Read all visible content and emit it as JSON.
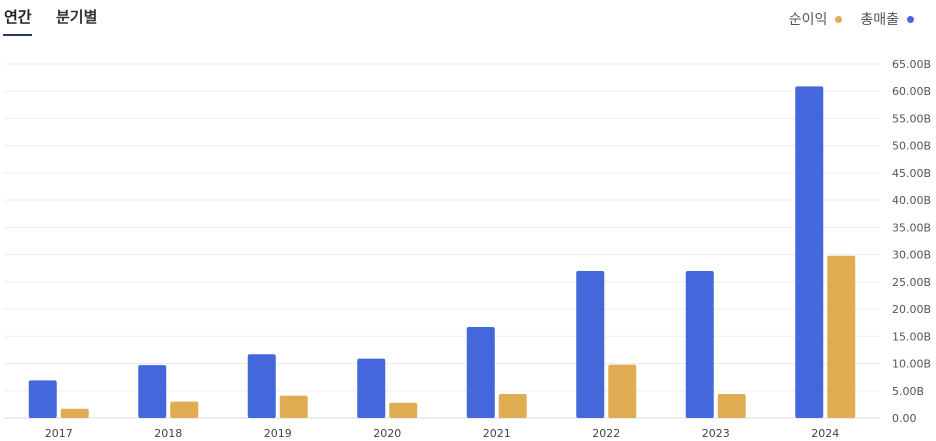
{
  "tabs": {
    "annual": "연간",
    "quarterly": "분기별"
  },
  "legend": [
    {
      "label": "순이익",
      "color": "#e0ac52"
    },
    {
      "label": "총매출",
      "color": "#4467dc"
    }
  ],
  "chart_data": {
    "type": "bar",
    "categories": [
      "2017",
      "2018",
      "2019",
      "2020",
      "2021",
      "2022",
      "2023",
      "2024"
    ],
    "series": [
      {
        "name": "총매출",
        "color": "#4467dc",
        "values": [
          6.9,
          9.7,
          11.7,
          10.9,
          16.7,
          27.0,
          27.0,
          60.9
        ]
      },
      {
        "name": "순이익",
        "color": "#e0ac52",
        "values": [
          1.7,
          3.0,
          4.1,
          2.8,
          4.4,
          9.8,
          4.4,
          29.8
        ]
      }
    ],
    "ylim": [
      0,
      65
    ],
    "yticks": [
      "0.00",
      "5.00B",
      "10.00B",
      "15.00B",
      "20.00B",
      "25.00B",
      "30.00B",
      "35.00B",
      "40.00B",
      "45.00B",
      "50.00B",
      "55.00B",
      "60.00B",
      "65.00B"
    ],
    "ytick_values": [
      0,
      5,
      10,
      15,
      20,
      25,
      30,
      35,
      40,
      45,
      50,
      55,
      60,
      65
    ],
    "grid": true,
    "legend_position": "top-right"
  }
}
